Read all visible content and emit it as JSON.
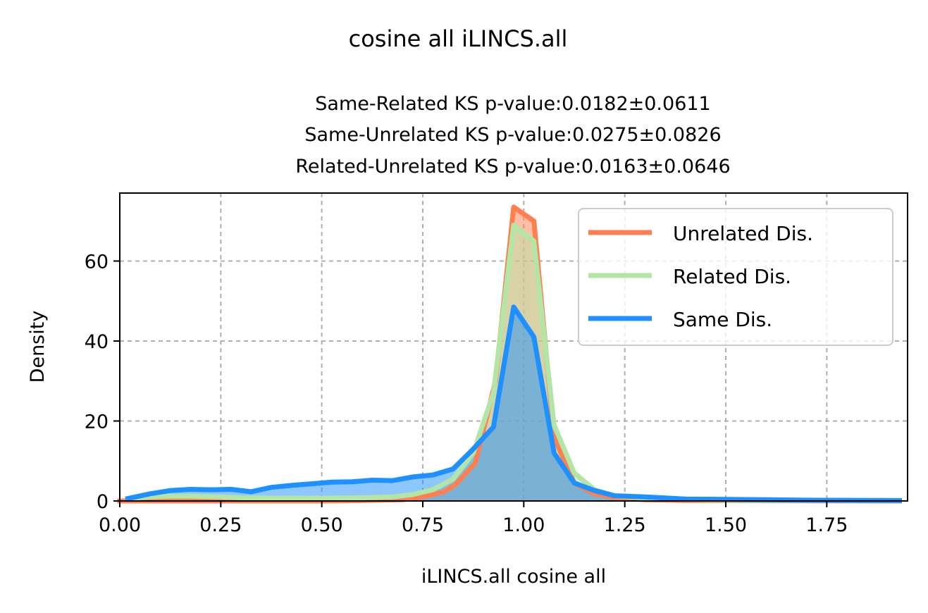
{
  "figure": {
    "suptitle": "cosine all iLINCS.all",
    "subtitle_lines": [
      "Same-Related KS p-value:0.0182±0.0611",
      "Same-Unrelated KS p-value:0.0275±0.0826",
      "Related-Unrelated KS p-value:0.0163±0.0646"
    ]
  },
  "chart_data": {
    "type": "area",
    "title": "cosine all iLINCS.all",
    "xlabel": "iLINCS.all cosine all",
    "ylabel": "Density",
    "xlim": [
      0,
      1.95
    ],
    "ylim": [
      0,
      77
    ],
    "xticks": [
      "0.00",
      "0.25",
      "0.50",
      "0.75",
      "1.00",
      "1.25",
      "1.50",
      "1.75"
    ],
    "yticks": [
      "0",
      "20",
      "40",
      "60"
    ],
    "grid": true,
    "legend_position": "top-right",
    "legend": [
      "Unrelated Dis.",
      "Related Dis.",
      "Same Dis."
    ],
    "series": [
      {
        "name": "Unrelated Dis.",
        "color": "#ff7f50",
        "fill": "#ff7f50",
        "points": [
          [
            0.0,
            0
          ],
          [
            0.5,
            0
          ],
          [
            0.6,
            0.1
          ],
          [
            0.7,
            0.3
          ],
          [
            0.75,
            1.0
          ],
          [
            0.8,
            2.2
          ],
          [
            0.83,
            4.0
          ],
          [
            0.88,
            9.5
          ],
          [
            0.93,
            30.0
          ],
          [
            0.975,
            73.5
          ],
          [
            1.025,
            70.0
          ],
          [
            1.075,
            16.0
          ],
          [
            1.125,
            4.5
          ],
          [
            1.175,
            1.8
          ],
          [
            1.225,
            0.8
          ],
          [
            1.3,
            0.3
          ],
          [
            1.4,
            0.1
          ],
          [
            1.93,
            0
          ]
        ]
      },
      {
        "name": "Related Dis.",
        "color": "#b2e5a6",
        "fill": "#b2e5a6",
        "points": [
          [
            0.02,
            0.6
          ],
          [
            0.075,
            1.0
          ],
          [
            0.125,
            1.2
          ],
          [
            0.175,
            1.2
          ],
          [
            0.25,
            1.0
          ],
          [
            0.3,
            0.8
          ],
          [
            0.4,
            0.7
          ],
          [
            0.5,
            0.7
          ],
          [
            0.6,
            0.8
          ],
          [
            0.675,
            1.0
          ],
          [
            0.725,
            1.6
          ],
          [
            0.775,
            2.8
          ],
          [
            0.825,
            5.5
          ],
          [
            0.875,
            12.0
          ],
          [
            0.925,
            27.0
          ],
          [
            0.975,
            69.0
          ],
          [
            1.025,
            65.0
          ],
          [
            1.075,
            19.0
          ],
          [
            1.125,
            7.0
          ],
          [
            1.175,
            2.8
          ],
          [
            1.225,
            1.3
          ],
          [
            1.3,
            0.7
          ],
          [
            1.4,
            0.4
          ],
          [
            1.5,
            0.2
          ],
          [
            1.93,
            0.1
          ]
        ]
      },
      {
        "name": "Same Dis.",
        "color": "#1e90ff",
        "fill": "#1e90ff",
        "points": [
          [
            0.02,
            0.6
          ],
          [
            0.075,
            1.8
          ],
          [
            0.125,
            2.6
          ],
          [
            0.175,
            2.9
          ],
          [
            0.225,
            2.8
          ],
          [
            0.275,
            2.9
          ],
          [
            0.325,
            2.3
          ],
          [
            0.375,
            3.4
          ],
          [
            0.425,
            3.9
          ],
          [
            0.475,
            4.3
          ],
          [
            0.525,
            4.7
          ],
          [
            0.575,
            4.8
          ],
          [
            0.625,
            5.2
          ],
          [
            0.675,
            5.1
          ],
          [
            0.725,
            6.0
          ],
          [
            0.775,
            6.5
          ],
          [
            0.825,
            8.0
          ],
          [
            0.875,
            13.0
          ],
          [
            0.925,
            18.5
          ],
          [
            0.975,
            48.5
          ],
          [
            1.025,
            41.0
          ],
          [
            1.075,
            12.0
          ],
          [
            1.125,
            4.5
          ],
          [
            1.175,
            2.6
          ],
          [
            1.225,
            1.3
          ],
          [
            1.3,
            1.0
          ],
          [
            1.4,
            0.5
          ],
          [
            1.5,
            0.4
          ],
          [
            1.6,
            0.3
          ],
          [
            1.7,
            0.2
          ],
          [
            1.8,
            0.15
          ],
          [
            1.93,
            0.1
          ]
        ]
      }
    ]
  }
}
